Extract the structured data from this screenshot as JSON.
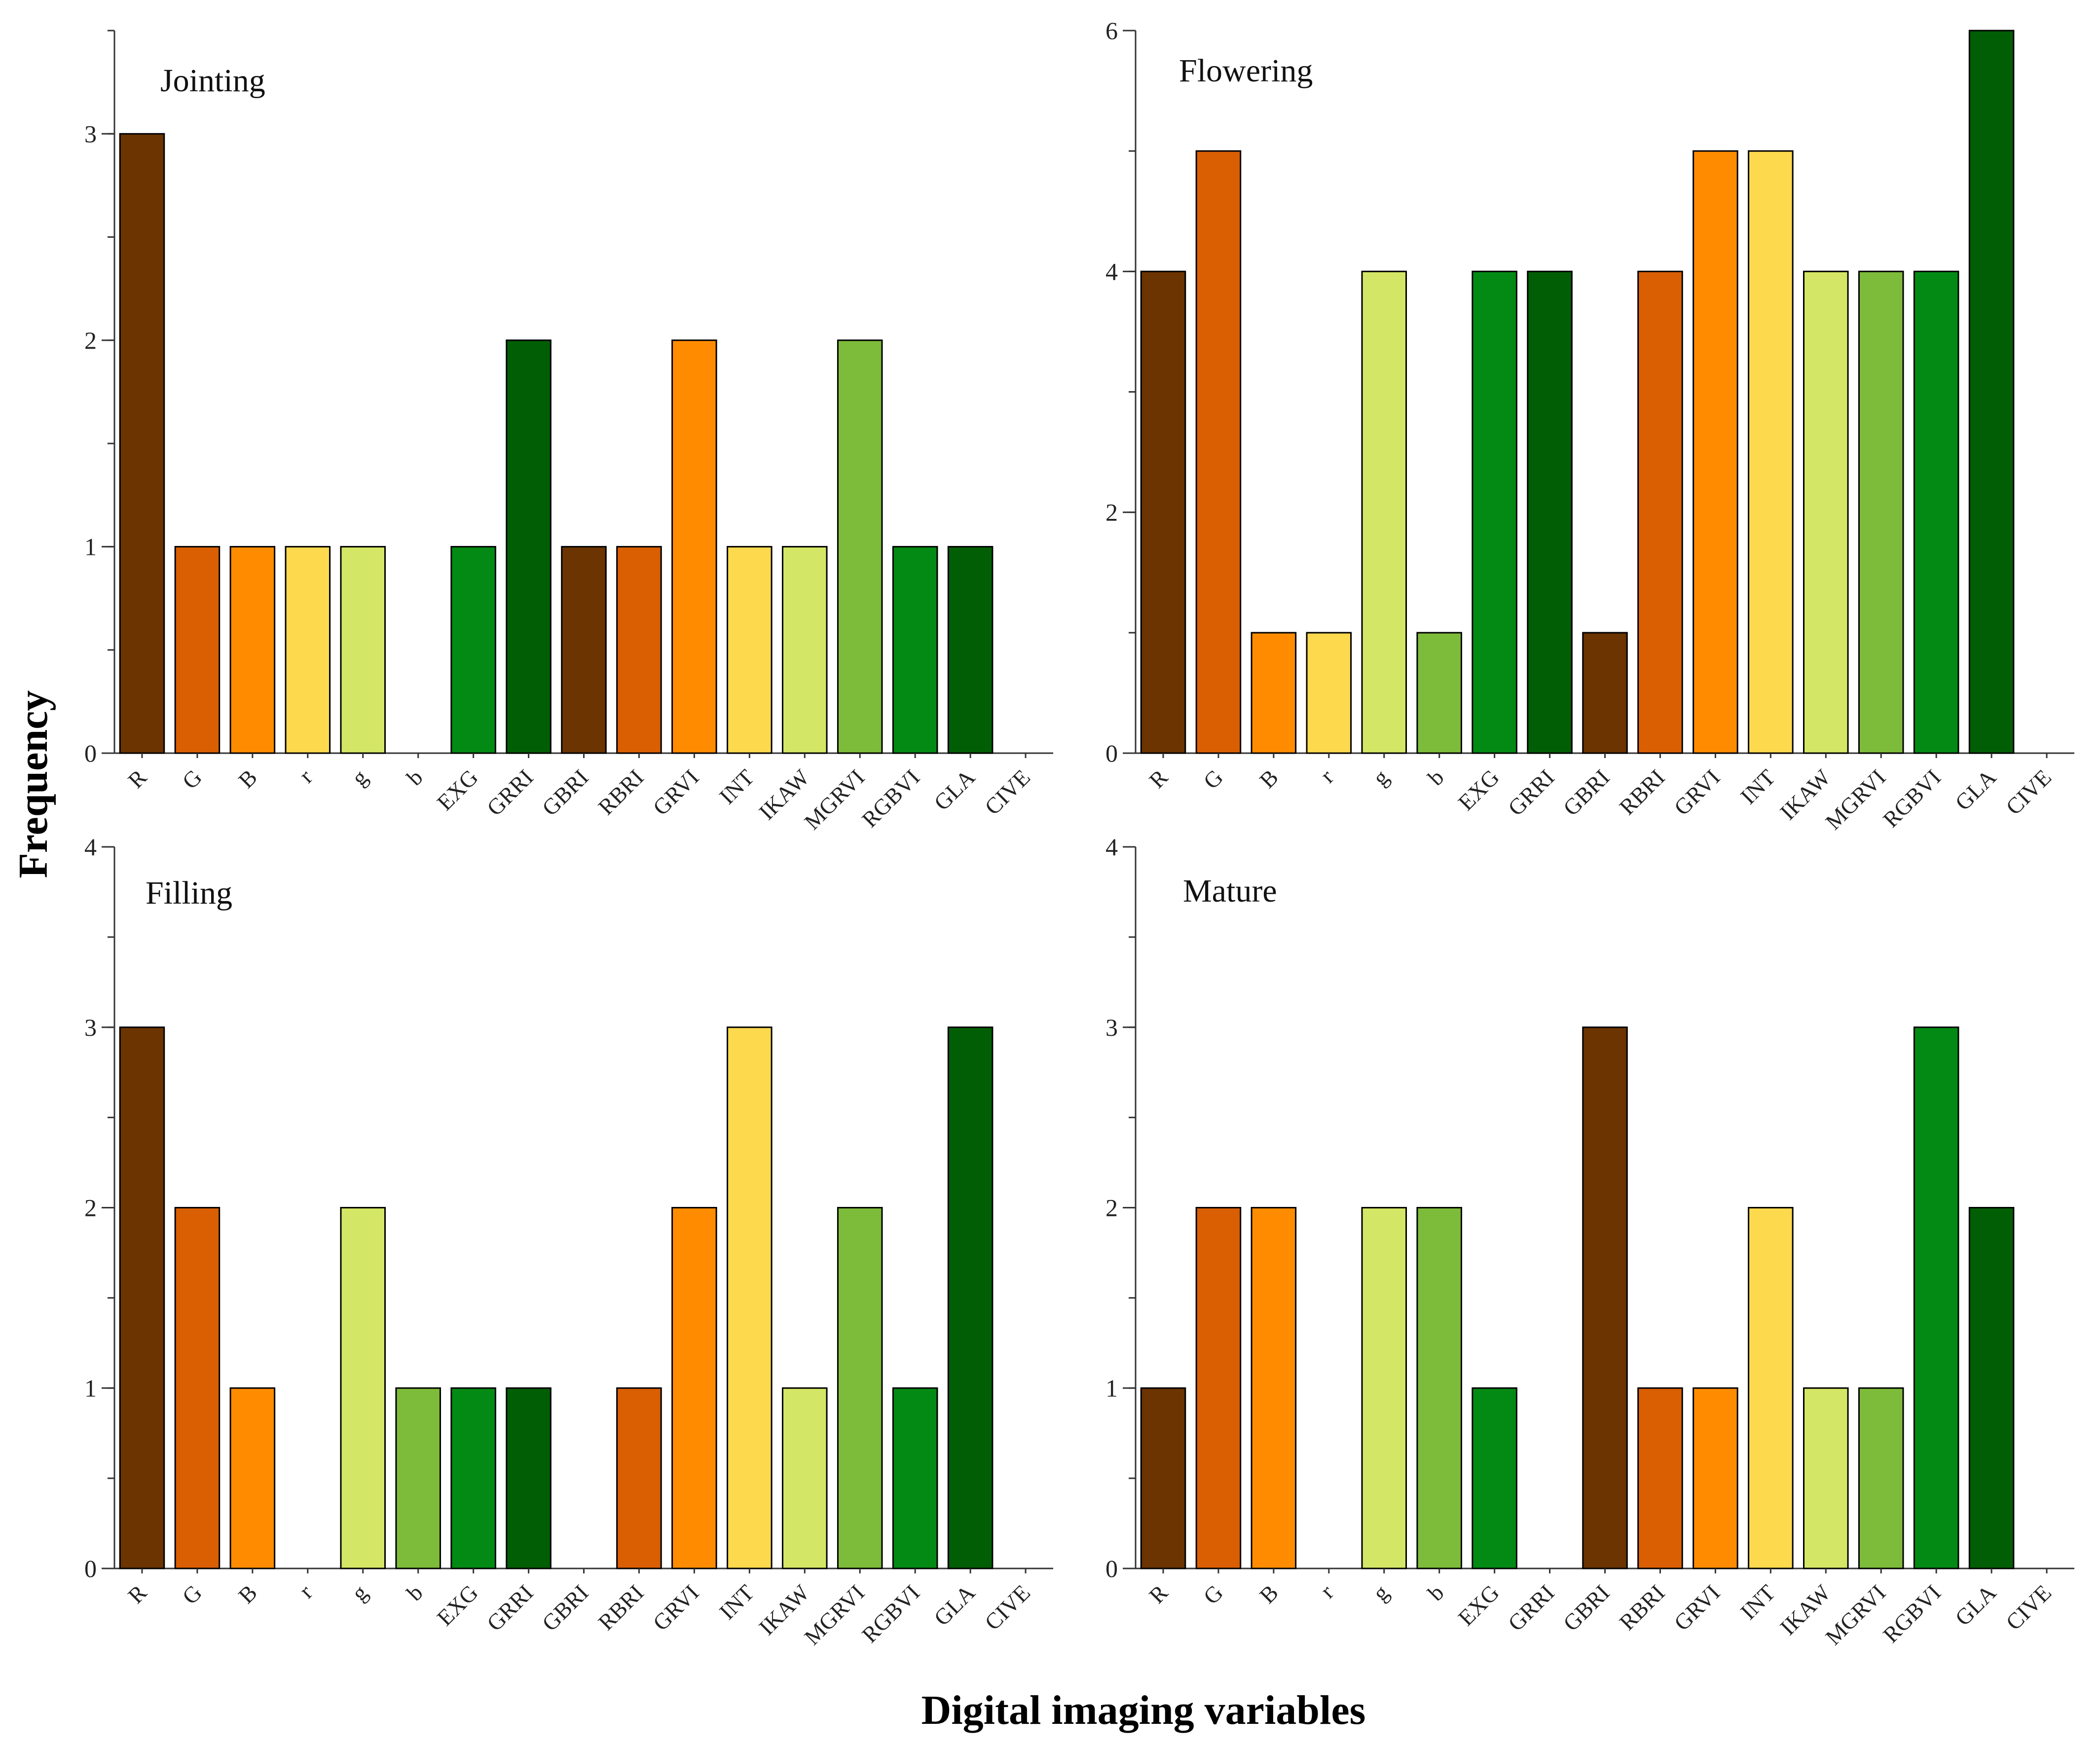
{
  "figure": {
    "ylabel": "Frequency",
    "xlabel": "Digital imaging variables"
  },
  "colors": {
    "R": "#6b3400",
    "G": "#d95f02",
    "B": "#ff8c00",
    "r": "#fdd94e",
    "g": "#d4e665",
    "b": "#7dbb3a",
    "EXG": "#038a14",
    "GRRI": "#025e05",
    "GBRI": "#6b3400",
    "RBRI": "#d95f02",
    "GRVI": "#ff8c00",
    "INT": "#fdd94e",
    "IKAW": "#d4e665",
    "MGRVI": "#7dbb3a",
    "RGBVI": "#038a14",
    "GLA": "#025e05",
    "CIVE": "#6b3400"
  },
  "chart_data": [
    {
      "type": "bar",
      "title": "Jointing",
      "categories": [
        "R",
        "G",
        "B",
        "r",
        "g",
        "b",
        "EXG",
        "GRRI",
        "GBRI",
        "RBRI",
        "GRVI",
        "INT",
        "IKAW",
        "MGRVI",
        "RGBVI",
        "GLA",
        "CIVE"
      ],
      "values": [
        3,
        1,
        1,
        1,
        1,
        0,
        1,
        2,
        1,
        1,
        2,
        1,
        1,
        2,
        1,
        1,
        0
      ],
      "ylim": [
        0,
        3.5
      ],
      "yticks": [
        0,
        1,
        2,
        3
      ],
      "ymajor_step": 1,
      "yminor_step": 0.5,
      "grid": false
    },
    {
      "type": "bar",
      "title": "Flowering",
      "categories": [
        "R",
        "G",
        "B",
        "r",
        "g",
        "b",
        "EXG",
        "GRRI",
        "GBRI",
        "RBRI",
        "GRVI",
        "INT",
        "IKAW",
        "MGRVI",
        "RGBVI",
        "GLA",
        "CIVE"
      ],
      "values": [
        4,
        5,
        1,
        1,
        4,
        1,
        4,
        4,
        1,
        4,
        5,
        5,
        4,
        4,
        4,
        6,
        0
      ],
      "ylim": [
        0,
        6
      ],
      "yticks": [
        0,
        2,
        4,
        6
      ],
      "ymajor_step": 2,
      "yminor_step": 1,
      "grid": false
    },
    {
      "type": "bar",
      "title": "Filling",
      "categories": [
        "R",
        "G",
        "B",
        "r",
        "g",
        "b",
        "EXG",
        "GRRI",
        "GBRI",
        "RBRI",
        "GRVI",
        "INT",
        "IKAW",
        "MGRVI",
        "RGBVI",
        "GLA",
        "CIVE"
      ],
      "values": [
        3,
        2,
        1,
        0,
        2,
        1,
        1,
        1,
        0,
        1,
        2,
        3,
        1,
        2,
        1,
        3,
        0
      ],
      "ylim": [
        0,
        4
      ],
      "yticks": [
        0,
        1,
        2,
        3,
        4
      ],
      "ymajor_step": 1,
      "yminor_step": 0.5,
      "grid": false
    },
    {
      "type": "bar",
      "title": "Mature",
      "categories": [
        "R",
        "G",
        "B",
        "r",
        "g",
        "b",
        "EXG",
        "GRRI",
        "GBRI",
        "RBRI",
        "GRVI",
        "INT",
        "IKAW",
        "MGRVI",
        "RGBVI",
        "GLA",
        "CIVE"
      ],
      "values": [
        1,
        2,
        2,
        0,
        2,
        2,
        1,
        0,
        3,
        1,
        1,
        2,
        1,
        1,
        3,
        2,
        0
      ],
      "ylim": [
        0,
        4
      ],
      "yticks": [
        0,
        1,
        2,
        3,
        4
      ],
      "ymajor_step": 1,
      "yminor_step": 0.5,
      "grid": false
    }
  ]
}
